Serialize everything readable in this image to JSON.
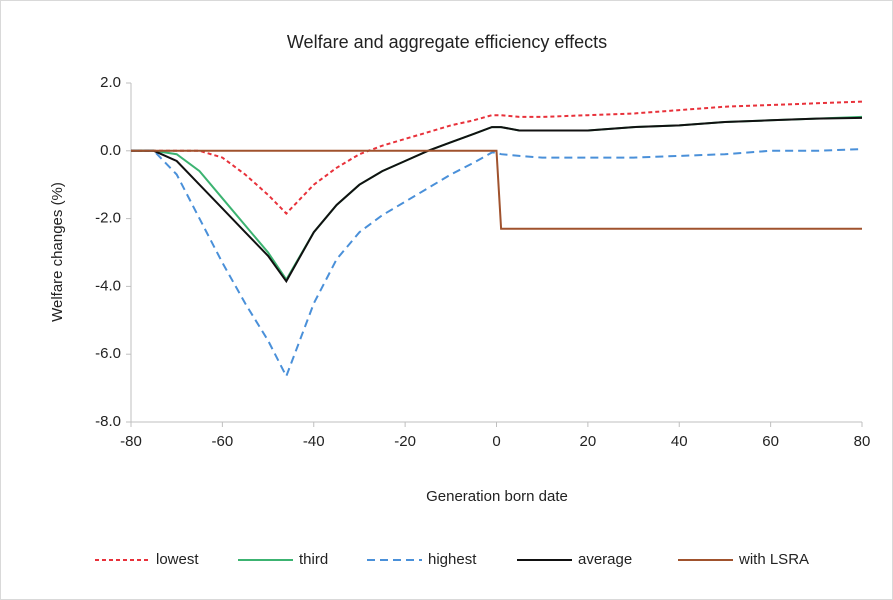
{
  "chart_data": {
    "type": "line",
    "title": "Welfare and aggregate efficiency effects",
    "xlabel": "Generation born date",
    "ylabel": "Welfare changes (%)",
    "x": [
      -80,
      -75,
      -70,
      -65,
      -60,
      -55,
      -50,
      -46,
      -40,
      -35,
      -30,
      -25,
      -20,
      -15,
      -10,
      -5,
      -1,
      0,
      1,
      5,
      10,
      20,
      30,
      40,
      50,
      60,
      70,
      80
    ],
    "series": [
      {
        "name": "lowest",
        "color": "#e8313a",
        "style": "dotted",
        "values": [
          0,
          0,
          0,
          0,
          -0.2,
          -0.7,
          -1.3,
          -1.85,
          -1.0,
          -0.5,
          -0.1,
          0.15,
          0.35,
          0.55,
          0.75,
          0.9,
          1.05,
          1.05,
          1.05,
          1.0,
          1.0,
          1.05,
          1.1,
          1.2,
          1.3,
          1.35,
          1.4,
          1.45
        ]
      },
      {
        "name": "third",
        "color": "#3cb371",
        "style": "solid",
        "values": [
          0,
          0,
          -0.1,
          -0.6,
          -1.4,
          -2.2,
          -3.0,
          -3.8,
          -2.4,
          -1.6,
          -1.0,
          -0.6,
          -0.3,
          0,
          0.25,
          0.5,
          0.7,
          0.7,
          0.7,
          0.6,
          0.6,
          0.6,
          0.7,
          0.75,
          0.85,
          0.9,
          0.95,
          1.0
        ]
      },
      {
        "name": "highest",
        "color": "#4a90d9",
        "style": "dashed",
        "values": [
          0,
          0,
          -0.7,
          -2.0,
          -3.3,
          -4.5,
          -5.6,
          -6.65,
          -4.5,
          -3.2,
          -2.4,
          -1.9,
          -1.5,
          -1.1,
          -0.7,
          -0.35,
          -0.05,
          -0.05,
          -0.1,
          -0.15,
          -0.2,
          -0.2,
          -0.2,
          -0.15,
          -0.1,
          0,
          0,
          0.05
        ]
      },
      {
        "name": "average",
        "color": "#111111",
        "style": "solid",
        "values": [
          0,
          0,
          -0.3,
          -1.0,
          -1.7,
          -2.4,
          -3.1,
          -3.85,
          -2.4,
          -1.6,
          -1.0,
          -0.6,
          -0.3,
          0,
          0.25,
          0.5,
          0.7,
          0.7,
          0.7,
          0.6,
          0.6,
          0.6,
          0.7,
          0.75,
          0.85,
          0.9,
          0.95,
          0.97
        ]
      },
      {
        "name": "with LSRA",
        "color": "#a0522d",
        "style": "solid",
        "values": [
          0,
          0,
          0,
          0,
          0,
          0,
          0,
          0,
          0,
          0,
          0,
          0,
          0,
          0,
          0,
          0,
          0,
          0,
          -2.3,
          -2.3,
          -2.3,
          -2.3,
          -2.3,
          -2.3,
          -2.3,
          -2.3,
          -2.3,
          -2.3
        ]
      }
    ],
    "xlim": [
      -80,
      80
    ],
    "xticks": [
      -80,
      -60,
      -40,
      -20,
      0,
      20,
      40,
      60,
      80
    ],
    "ylim": [
      -8,
      2
    ],
    "yticks": [
      {
        "value": -8,
        "label": "-8.0"
      },
      {
        "value": -6,
        "label": "-6.0"
      },
      {
        "value": -4,
        "label": "-4.0"
      },
      {
        "value": -2,
        "label": "-2.0"
      },
      {
        "value": 0,
        "label": "0.0"
      },
      {
        "value": 2,
        "label": "2.0"
      }
    ],
    "grid": false,
    "legend": "bottom"
  }
}
